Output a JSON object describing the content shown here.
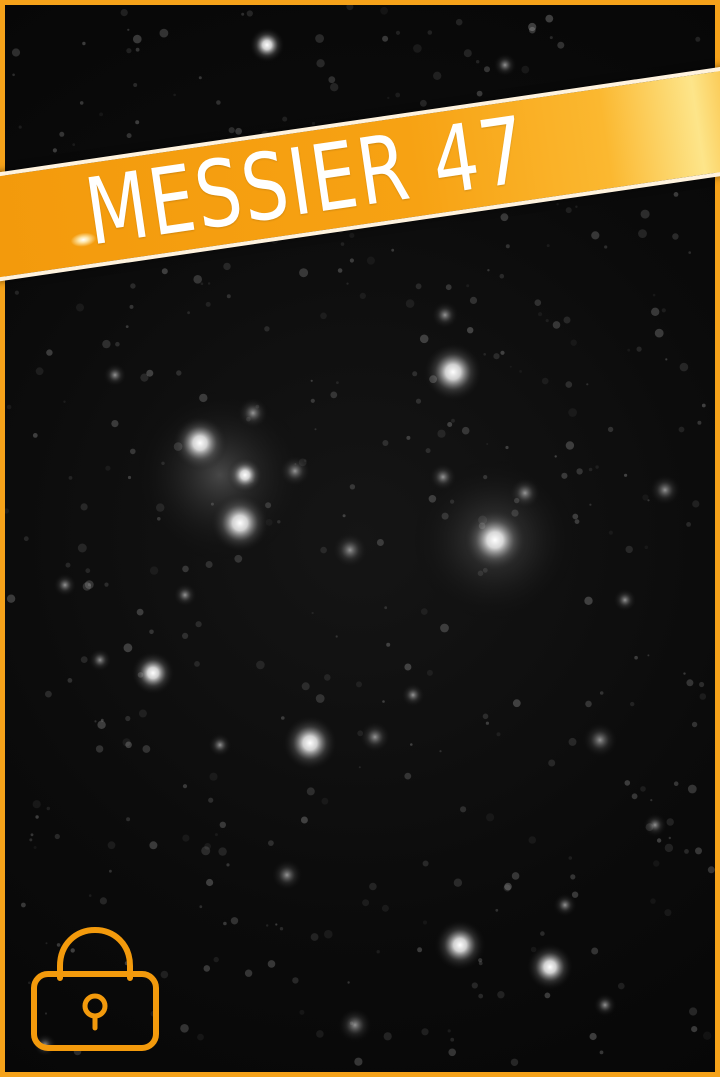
{
  "card": {
    "title": "MESSIER 47",
    "locked": true,
    "lock_icon": "padlock-icon",
    "accent_color": "#f5a21a",
    "background_color": "#0b0b0b"
  }
}
